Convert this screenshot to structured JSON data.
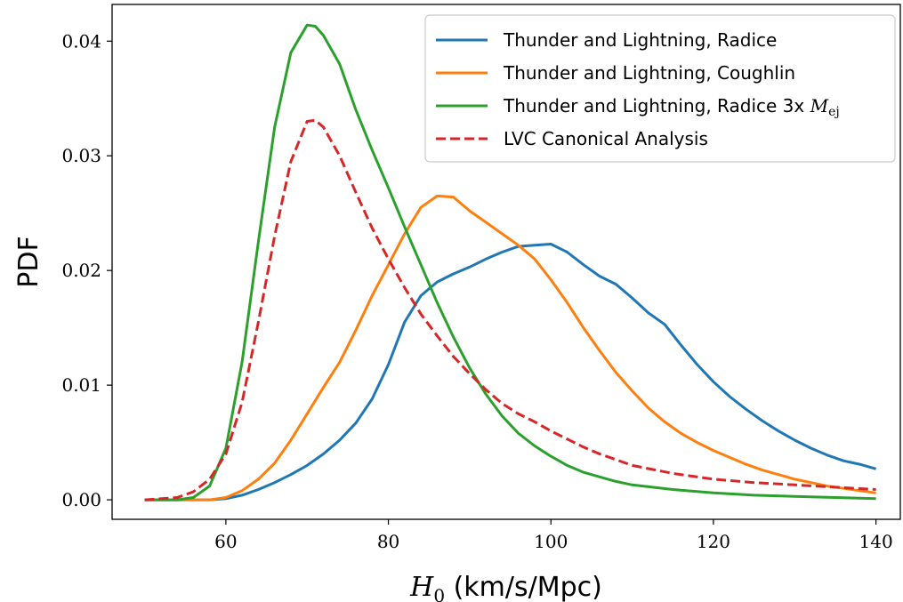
{
  "chart_data": {
    "type": "line",
    "title": "",
    "xlabel": {
      "symbol": "H",
      "subscript": "0",
      "units": " (km/s/Mpc)"
    },
    "ylabel": "PDF",
    "xlim": [
      46,
      143
    ],
    "ylim": [
      -0.0017,
      0.0432
    ],
    "xticks": [
      60,
      80,
      100,
      120,
      140
    ],
    "yticks": [
      0.0,
      0.01,
      0.02,
      0.03,
      0.04
    ],
    "ytick_labels": [
      "0.00",
      "0.01",
      "0.02",
      "0.03",
      "0.04"
    ],
    "grid": false,
    "legend_position": "top-right",
    "series": [
      {
        "name": "Thunder and Lightning, Radice",
        "color": "#1f77b4",
        "dash": "solid",
        "x": [
          50,
          55,
          58,
          60,
          62,
          64,
          66,
          68,
          70,
          72,
          74,
          76,
          78,
          80,
          82,
          84,
          86,
          88,
          90,
          92,
          94,
          96,
          98,
          100,
          102,
          104,
          106,
          108,
          110,
          112,
          114,
          116,
          118,
          120,
          122,
          124,
          126,
          128,
          130,
          132,
          134,
          136,
          138,
          140
        ],
        "y": [
          0.0,
          0.0,
          0.0,
          0.0001,
          0.0004,
          0.0009,
          0.0015,
          0.0022,
          0.003,
          0.004,
          0.0052,
          0.0067,
          0.0088,
          0.0118,
          0.0155,
          0.0178,
          0.019,
          0.0197,
          0.0203,
          0.021,
          0.0216,
          0.0221,
          0.0222,
          0.0223,
          0.0216,
          0.0205,
          0.0195,
          0.0188,
          0.0176,
          0.0163,
          0.0153,
          0.0135,
          0.0118,
          0.0103,
          0.009,
          0.0079,
          0.0069,
          0.006,
          0.0052,
          0.0045,
          0.0039,
          0.0034,
          0.0031,
          0.0027
        ]
      },
      {
        "name": "Thunder and Lightning, Coughlin",
        "color": "#ff7f0e",
        "dash": "solid",
        "x": [
          50,
          54,
          58,
          60,
          62,
          64,
          66,
          68,
          70,
          72,
          74,
          76,
          78,
          80,
          82,
          84,
          86,
          88,
          90,
          92,
          94,
          96,
          98,
          100,
          102,
          104,
          106,
          108,
          110,
          112,
          114,
          116,
          118,
          120,
          122,
          124,
          126,
          128,
          130,
          132,
          134,
          136,
          138,
          140
        ],
        "y": [
          0.0,
          0.0,
          0.0,
          0.0002,
          0.0008,
          0.0018,
          0.0032,
          0.0052,
          0.0075,
          0.0098,
          0.012,
          0.0148,
          0.0178,
          0.0205,
          0.0232,
          0.0255,
          0.0265,
          0.0264,
          0.0252,
          0.0242,
          0.0232,
          0.0222,
          0.021,
          0.0192,
          0.0172,
          0.015,
          0.013,
          0.0111,
          0.0095,
          0.008,
          0.0068,
          0.0058,
          0.005,
          0.0043,
          0.0037,
          0.0031,
          0.0026,
          0.0022,
          0.0018,
          0.0015,
          0.0012,
          0.001,
          0.0008,
          0.0006
        ]
      },
      {
        "name": "Thunder and Lightning, Radice 3x M_ej",
        "name_parts": {
          "text": "Thunder and Lightning, Radice 3x ",
          "symbol": "M",
          "subscript": "ej"
        },
        "color": "#2ca02c",
        "dash": "solid",
        "x": [
          50,
          54,
          56,
          58,
          60,
          62,
          64,
          66,
          68,
          70,
          71,
          72,
          74,
          76,
          78,
          80,
          82,
          84,
          86,
          88,
          90,
          92,
          94,
          96,
          98,
          100,
          102,
          104,
          106,
          108,
          110,
          115,
          120,
          125,
          130,
          135,
          140
        ],
        "y": [
          0.0,
          0.0,
          0.0002,
          0.0012,
          0.0045,
          0.012,
          0.0225,
          0.0325,
          0.039,
          0.0414,
          0.0413,
          0.0405,
          0.038,
          0.034,
          0.0305,
          0.0272,
          0.0238,
          0.0205,
          0.0172,
          0.0142,
          0.0115,
          0.0092,
          0.0073,
          0.0058,
          0.0047,
          0.0038,
          0.003,
          0.0024,
          0.002,
          0.0016,
          0.0013,
          0.0009,
          0.0006,
          0.0004,
          0.0003,
          0.0002,
          0.0001
        ]
      },
      {
        "name": "LVC Canonical Analysis",
        "color": "#d62728",
        "dash": "dashed",
        "x": [
          50,
          54,
          56,
          58,
          60,
          62,
          64,
          66,
          68,
          70,
          71,
          72,
          74,
          76,
          78,
          80,
          82,
          84,
          86,
          88,
          90,
          92,
          94,
          96,
          98,
          100,
          102,
          104,
          106,
          108,
          110,
          115,
          120,
          125,
          130,
          135,
          140
        ],
        "y": [
          0.0,
          0.0002,
          0.0007,
          0.0018,
          0.004,
          0.0085,
          0.0155,
          0.023,
          0.0295,
          0.033,
          0.0331,
          0.0325,
          0.03,
          0.0268,
          0.0237,
          0.021,
          0.0185,
          0.0162,
          0.0143,
          0.0125,
          0.011,
          0.0096,
          0.0084,
          0.0075,
          0.0068,
          0.006,
          0.0053,
          0.0046,
          0.004,
          0.0035,
          0.003,
          0.0023,
          0.0018,
          0.0015,
          0.0013,
          0.0011,
          0.0009
        ]
      }
    ]
  }
}
